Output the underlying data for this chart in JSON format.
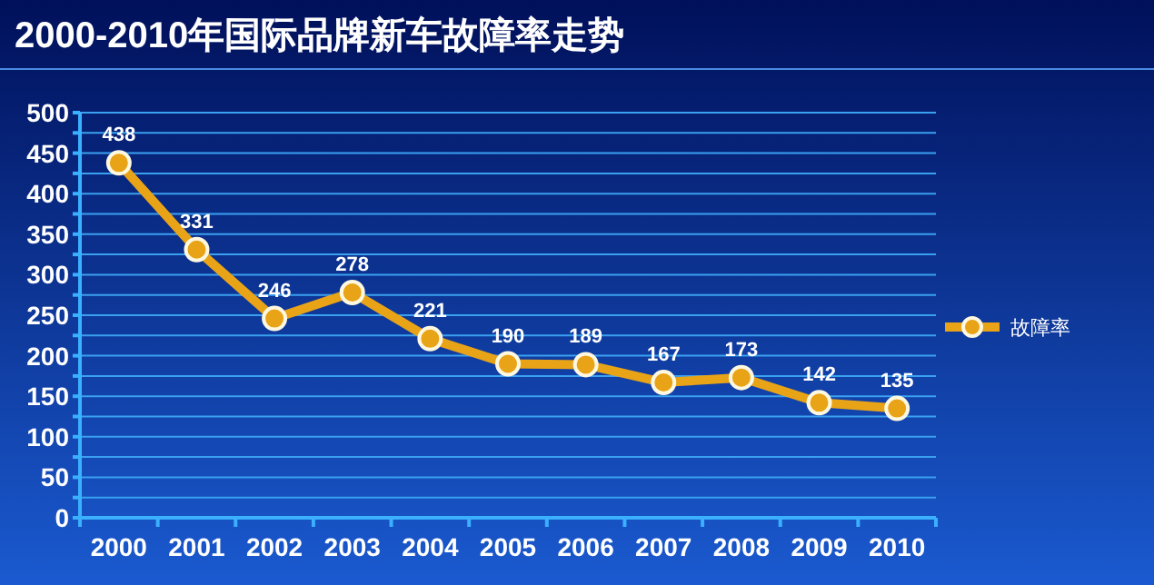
{
  "chart_data": {
    "type": "line",
    "title": "2000-2010年国际品牌新车故障率走势",
    "categories": [
      "2000",
      "2001",
      "2002",
      "2003",
      "2004",
      "2005",
      "2006",
      "2007",
      "2008",
      "2009",
      "2010"
    ],
    "series": [
      {
        "name": "故障率",
        "color": "#e8a317",
        "values": [
          438,
          331,
          246,
          278,
          221,
          190,
          189,
          167,
          173,
          142,
          135
        ]
      }
    ],
    "ylim": [
      0,
      500
    ],
    "yticks": [
      0,
      {
        "value": 25,
        "label": null
      },
      50,
      {
        "value": 75,
        "label": null
      },
      100,
      {
        "value": 125,
        "label": null
      },
      150,
      {
        "value": 175,
        "label": null
      },
      200,
      {
        "value": 225,
        "label": null
      },
      250,
      {
        "value": 275,
        "label": null
      },
      300,
      {
        "value": 325,
        "label": null
      },
      350,
      {
        "value": 375,
        "label": null
      },
      400,
      {
        "value": 425,
        "label": null
      },
      450,
      {
        "value": 475,
        "label": null
      },
      500
    ],
    "grid": "y",
    "legend": "right",
    "marker": "circle",
    "line_style": "solid",
    "data_labels": true
  }
}
